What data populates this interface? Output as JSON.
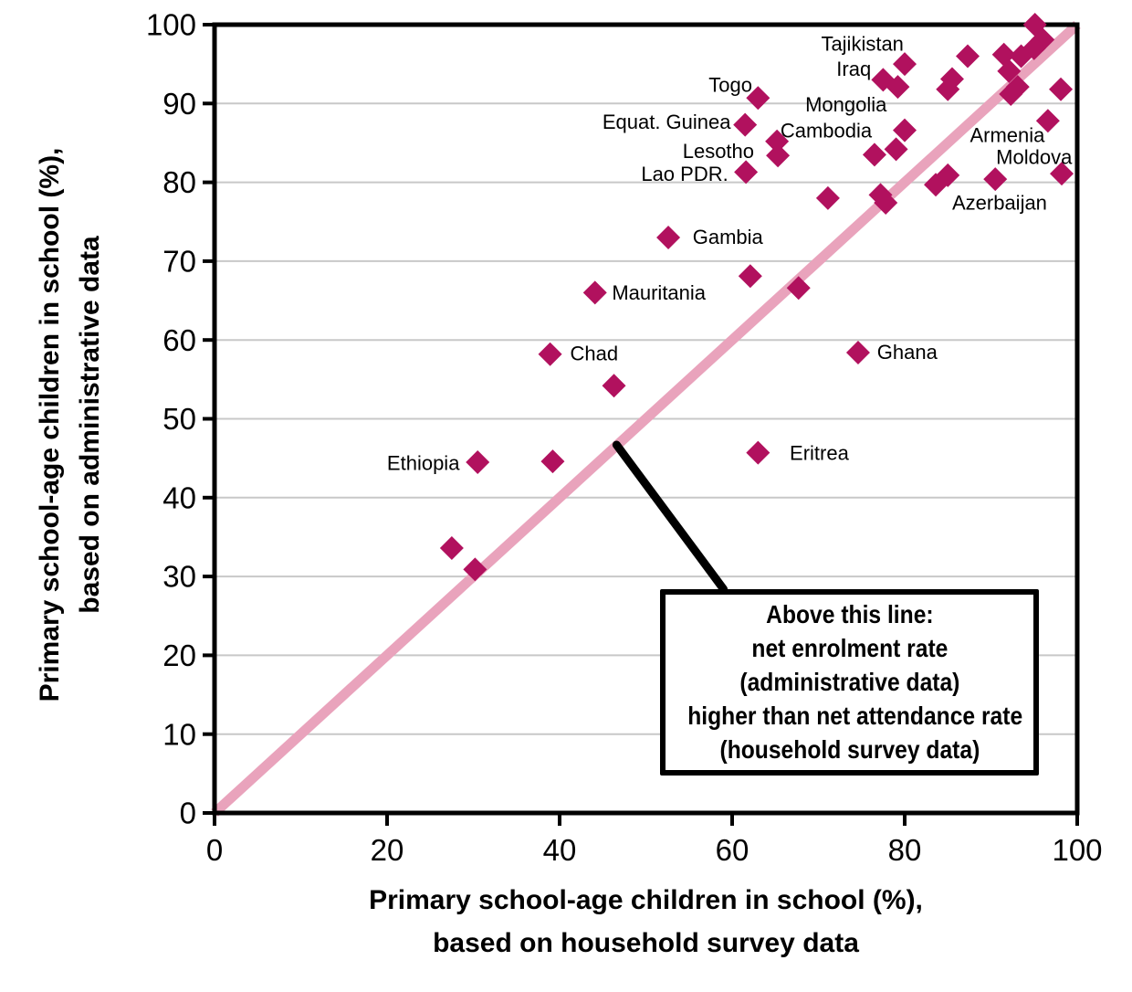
{
  "chart_data": {
    "type": "scatter",
    "xlabel_line1": "Primary school-age children in school (%),",
    "xlabel_line2": "based on household survey data",
    "ylabel_line1": "Primary school-age children in school (%),",
    "ylabel_line2": "based on administrative data",
    "xlim": [
      0,
      100
    ],
    "ylim": [
      0,
      100
    ],
    "x_ticks": [
      0,
      20,
      40,
      60,
      80,
      100
    ],
    "y_ticks": [
      0,
      10,
      20,
      30,
      40,
      50,
      60,
      70,
      80,
      90,
      100
    ],
    "grid": "horizontal-only",
    "grid_color": "#C8C8C8",
    "marker": "diamond",
    "marker_color": "#B1115E",
    "diagonal_line": {
      "from": [
        0,
        0
      ],
      "to": [
        100,
        100
      ],
      "color": "#E9A3BC"
    },
    "labeled_points": [
      {
        "name": "Tajikistan",
        "x": 80.0,
        "y": 95.0,
        "lx": 75.1,
        "ly": 97.6
      },
      {
        "name": "Iraq",
        "x": 77.5,
        "y": 93.0,
        "lx": 74.1,
        "ly": 94.4
      },
      {
        "name": "Togo",
        "x": 63.0,
        "y": 90.7,
        "lx": 59.8,
        "ly": 92.4
      },
      {
        "name": "Mongolia",
        "x": 80.0,
        "y": 86.6,
        "lx": 73.2,
        "ly": 89.9
      },
      {
        "name": "Equat. Guinea",
        "x": 61.5,
        "y": 87.3,
        "lx": 52.4,
        "ly": 87.7
      },
      {
        "name": "Cambodia",
        "x": 65.2,
        "y": 85.2,
        "lx": 70.9,
        "ly": 86.6
      },
      {
        "name": "Lesotho",
        "x": 65.3,
        "y": 83.4,
        "lx": 58.4,
        "ly": 84.0
      },
      {
        "name": "Lao PDR.",
        "x": 61.6,
        "y": 81.3,
        "lx": 54.5,
        "ly": 81.1
      },
      {
        "name": "Armenia",
        "x": 96.6,
        "y": 87.8,
        "lx": 91.9,
        "ly": 86.0
      },
      {
        "name": "Moldova",
        "x": 98.2,
        "y": 81.1,
        "lx": 95.0,
        "ly": 83.2
      },
      {
        "name": "Azerbaijan",
        "x": 90.5,
        "y": 80.4,
        "lx": 91.0,
        "ly": 77.4
      },
      {
        "name": "Gambia",
        "x": 52.6,
        "y": 73.0,
        "lx": 59.5,
        "ly": 73.1
      },
      {
        "name": "Mauritania",
        "x": 44.1,
        "y": 66.0,
        "lx": 51.5,
        "ly": 66.0
      },
      {
        "name": "Chad",
        "x": 38.9,
        "y": 58.2,
        "lx": 44.0,
        "ly": 58.3
      },
      {
        "name": "Ghana",
        "x": 74.6,
        "y": 58.4,
        "lx": 80.3,
        "ly": 58.5
      },
      {
        "name": "Ethiopia",
        "x": 30.5,
        "y": 44.5,
        "lx": 24.2,
        "ly": 44.4
      },
      {
        "name": "Eritrea",
        "x": 63.0,
        "y": 45.7,
        "lx": 70.1,
        "ly": 45.7
      }
    ],
    "unlabeled_points": [
      [
        95.1,
        100.0
      ],
      [
        96.0,
        98.1
      ],
      [
        95.0,
        97.0
      ],
      [
        93.5,
        96.0
      ],
      [
        91.5,
        96.2
      ],
      [
        92.1,
        94.1
      ],
      [
        93.1,
        92.1
      ],
      [
        92.3,
        91.2
      ],
      [
        98.1,
        91.8
      ],
      [
        87.3,
        96.0
      ],
      [
        85.5,
        93.1
      ],
      [
        85.0,
        91.8
      ],
      [
        79.2,
        92.1
      ],
      [
        76.5,
        83.5
      ],
      [
        79.0,
        84.2
      ],
      [
        83.6,
        79.7
      ],
      [
        85.0,
        80.9
      ],
      [
        77.2,
        78.4
      ],
      [
        77.8,
        77.4
      ],
      [
        71.1,
        78.0
      ],
      [
        62.1,
        68.1
      ],
      [
        67.7,
        66.6
      ],
      [
        46.3,
        54.2
      ],
      [
        39.2,
        44.6
      ],
      [
        27.5,
        33.6
      ],
      [
        30.2,
        30.9
      ]
    ],
    "annotation": {
      "lines": [
        "Above this line:",
        "net enrolment rate",
        "(administrative data)",
        "higher than net attendance rate",
        "(household survey data)"
      ],
      "box": {
        "x1": 51.6,
        "y1": 28.4,
        "x2": 95.6,
        "y2": 4.75
      },
      "pointer_from": [
        46.6,
        46.7
      ],
      "pointer_to": [
        59.0,
        28.4
      ]
    }
  }
}
